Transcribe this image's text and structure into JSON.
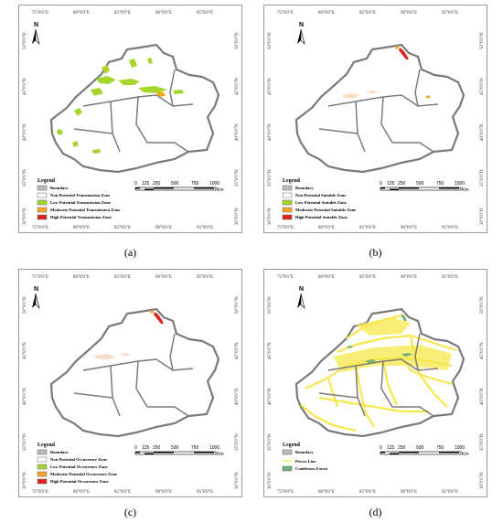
{
  "panels": [
    {
      "caption": "(a)",
      "legend": {
        "title": "Legend",
        "boundary": "Boundary",
        "items": [
          {
            "label": "Non Potential Transmission Zone",
            "color": "#ffffff"
          },
          {
            "label": "Low Potential Transmission Zone",
            "color": "#a5d62b"
          },
          {
            "label": "Moderate Potential Transmission Zone",
            "color": "#f5a623"
          },
          {
            "label": "High Potential Transmission Zone",
            "color": "#e0241c"
          }
        ]
      }
    },
    {
      "caption": "(b)",
      "legend": {
        "title": "Legend",
        "boundary": "Boundary",
        "items": [
          {
            "label": "Non Potential Suitable Zone",
            "color": "#ffffff"
          },
          {
            "label": "Low Potential Suitable Zone",
            "color": "#a5d62b"
          },
          {
            "label": "Moderate Potential Suitable Zone",
            "color": "#f5a623"
          },
          {
            "label": "High  Potential Suitable Zone",
            "color": "#e0241c"
          }
        ]
      }
    },
    {
      "caption": "(c)",
      "legend": {
        "title": "Legend",
        "boundary": "Boundary",
        "items": [
          {
            "label": "Non Potential Occurrence Zone",
            "color": "#ffffff"
          },
          {
            "label": "Low Potential Occurrence Zone",
            "color": "#a5d62b"
          },
          {
            "label": "Moderate Potential Occurrence Zone",
            "color": "#f5a623"
          },
          {
            "label": "High Potential Occurrence Zone",
            "color": "#e0241c"
          }
        ]
      }
    },
    {
      "caption": "(d)",
      "legend": {
        "title": "Legend",
        "boundary": "Boundary",
        "items": [
          {
            "label": "Power Line",
            "color": "#f6e84a"
          },
          {
            "label": "Coniferous Forest",
            "color": "#6fb27a"
          }
        ]
      }
    }
  ],
  "lon_labels": [
    "75°0'0\"E",
    "80°0'0\"E",
    "85°0'0\"E",
    "90°0'0\"E",
    "95°0'0\"E"
  ],
  "lat_labels": [
    "50°0'0\"N",
    "45°0'0\"N",
    "40°0'0\"N",
    "35°0'0\"N",
    "30°0'0\"N"
  ],
  "north_label": "N",
  "scale": {
    "ticks": [
      "0",
      "125",
      "250",
      "500",
      "750",
      "1000"
    ],
    "unit": "Km"
  },
  "colors": {
    "boundary": "#7a7a7a",
    "low": "#a5d62b",
    "moderate": "#f5a623",
    "high": "#e0241c",
    "power_line": "#f6e84a",
    "forest": "#6fb27a"
  }
}
